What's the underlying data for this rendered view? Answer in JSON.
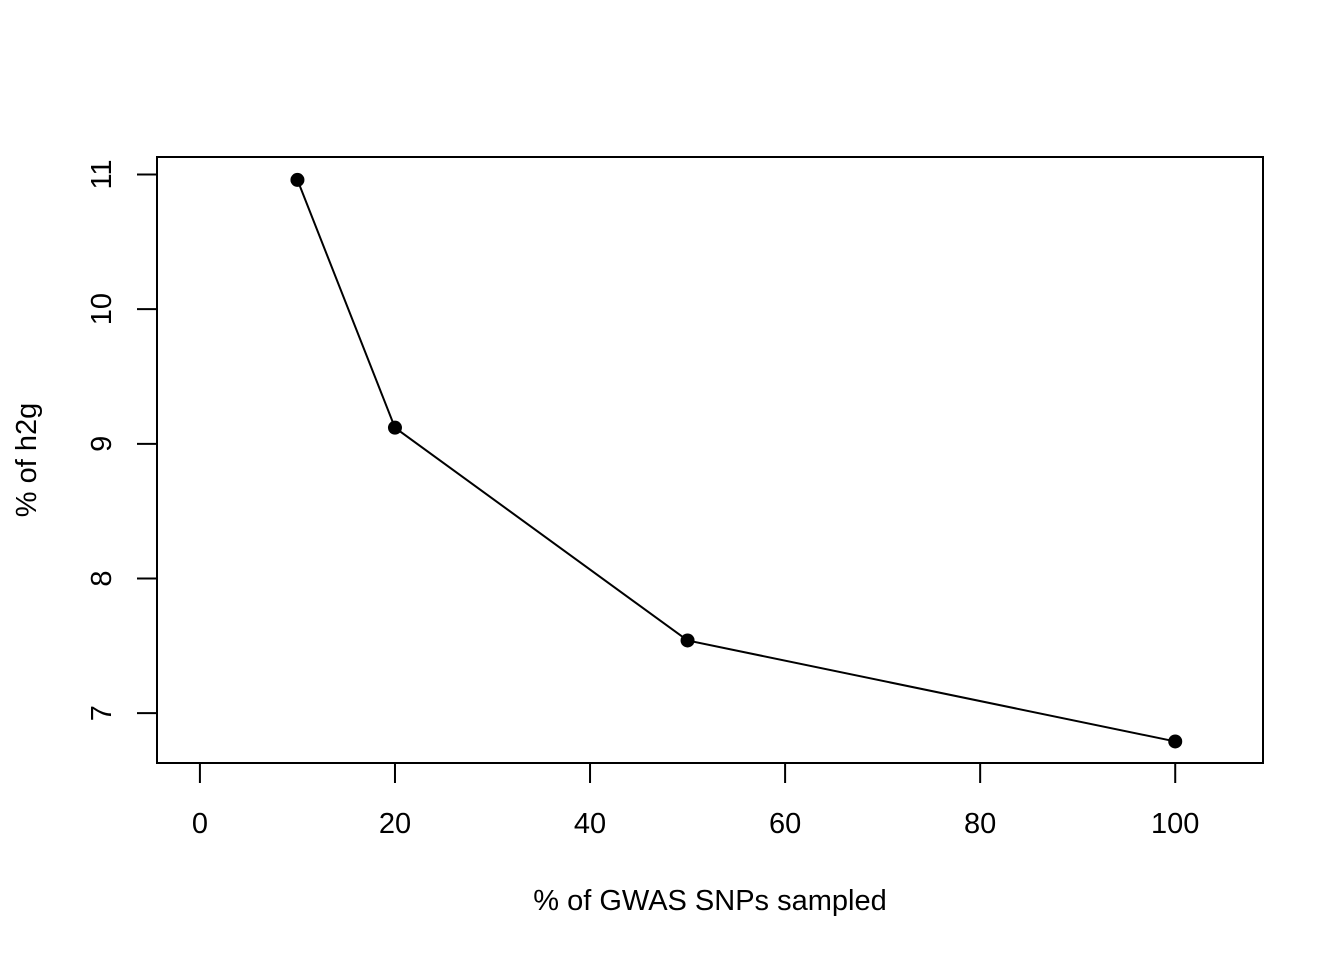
{
  "chart_data": {
    "type": "line",
    "title": "",
    "xlabel": "% of GWAS SNPs sampled",
    "ylabel": "% of h2g",
    "x": [
      10,
      20,
      50,
      100
    ],
    "y": [
      10.96,
      9.12,
      7.54,
      6.79
    ],
    "xlim": [
      -4.4,
      109
    ],
    "ylim": [
      6.63,
      11.13
    ],
    "xticks": [
      0,
      20,
      40,
      60,
      80,
      100
    ],
    "yticks": [
      7,
      8,
      9,
      10,
      11
    ],
    "grid": false,
    "legend": "none",
    "colors": {
      "line": "#000000",
      "points": "#000000",
      "frame": "#000000"
    }
  }
}
